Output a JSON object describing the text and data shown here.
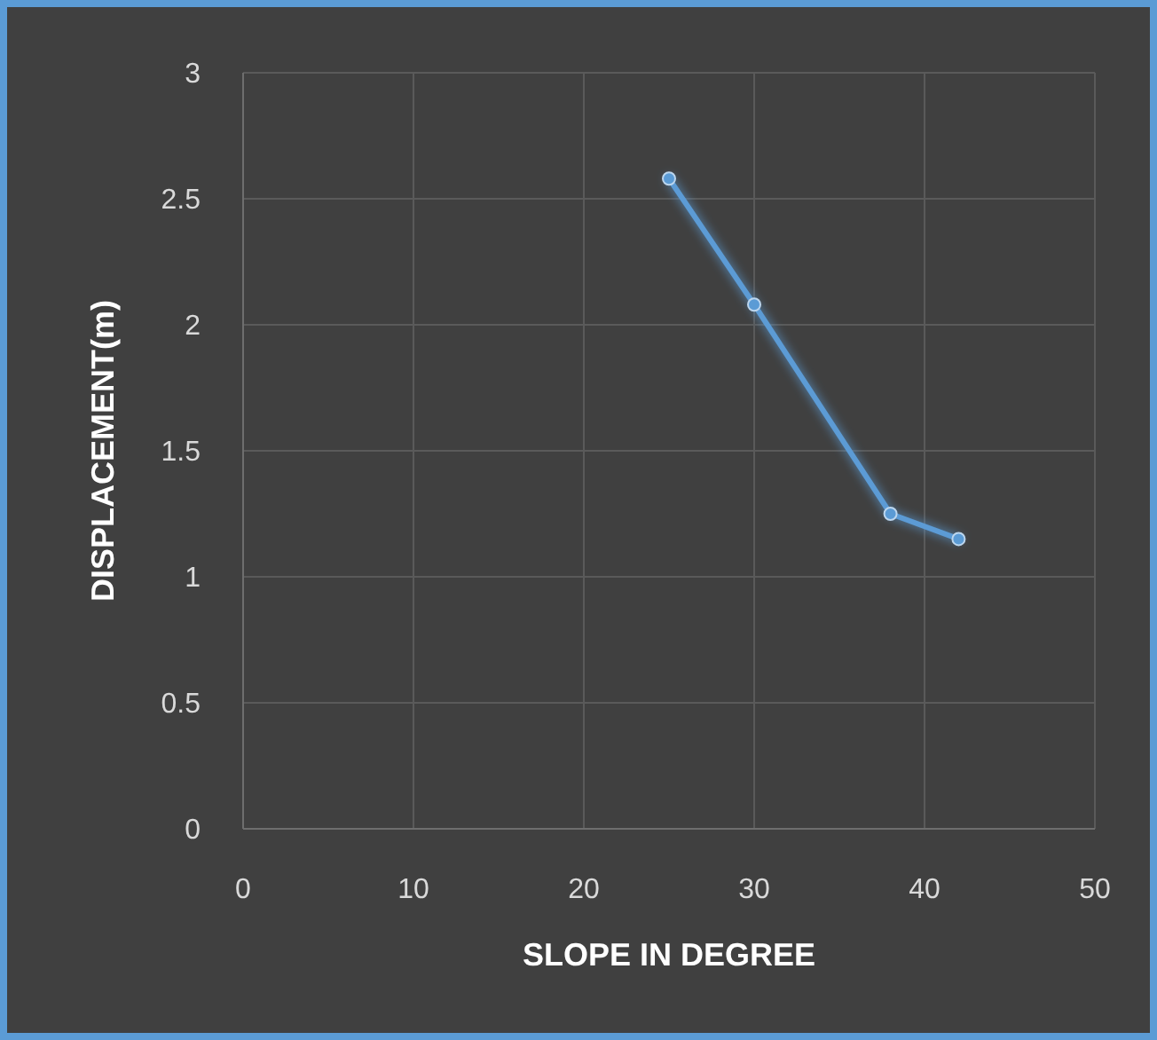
{
  "chart_data": {
    "type": "line",
    "xlabel": "SLOPE IN DEGREE",
    "ylabel": "DISPLACEMENT(m)",
    "x": [
      25,
      30,
      38,
      42
    ],
    "series": [
      {
        "color": "#5b9bd5",
        "values": [
          2.58,
          2.08,
          1.25,
          1.15
        ]
      }
    ],
    "xlim": [
      0,
      50
    ],
    "xticks": [
      0,
      10,
      20,
      30,
      40,
      50
    ],
    "ylim": [
      0,
      3
    ],
    "yticks": [
      0,
      0.5,
      1,
      1.5,
      2,
      2.5,
      3
    ],
    "grid": true,
    "marker": "circle",
    "line_style": "solid"
  }
}
